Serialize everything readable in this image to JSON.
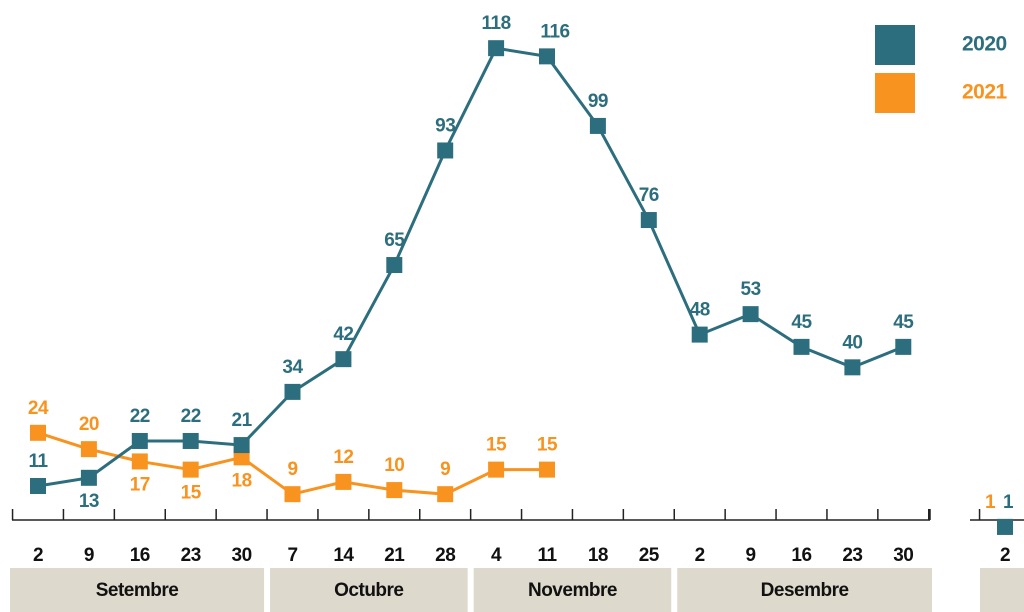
{
  "chart_data": [
    {
      "type": "line",
      "categories": [
        "2",
        "9",
        "16",
        "23",
        "30",
        "7",
        "14",
        "21",
        "28",
        "4",
        "11",
        "18",
        "25",
        "2",
        "9",
        "16",
        "23",
        "30"
      ],
      "months": [
        "Setembre",
        "Octubre",
        "Novembre",
        "Desembre"
      ],
      "series": [
        {
          "name": "2020",
          "color": "#2d6e7e",
          "values": [
            11,
            13,
            22,
            22,
            21,
            34,
            42,
            65,
            93,
            118,
            116,
            99,
            76,
            48,
            53,
            45,
            40,
            45
          ]
        },
        {
          "name": "2021",
          "color": "#f7931e",
          "values": [
            24,
            20,
            17,
            15,
            18,
            9,
            12,
            10,
            9,
            15,
            15,
            null,
            null,
            null,
            null,
            null,
            null,
            null
          ]
        }
      ],
      "ylim": [
        0,
        120
      ]
    },
    {
      "type": "line",
      "categories": [
        "2"
      ],
      "series": [
        {
          "color": "#2d6e7e",
          "values": [
            1
          ]
        },
        {
          "color": "#f7931e",
          "values": [
            1
          ]
        }
      ],
      "ylim": [
        0,
        120
      ]
    }
  ]
}
